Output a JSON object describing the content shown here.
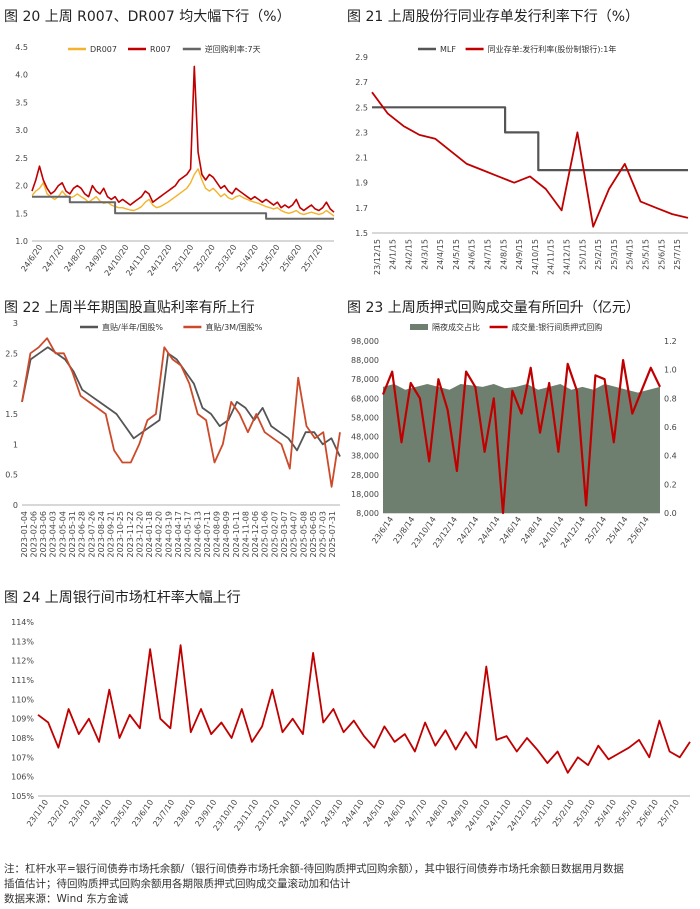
{
  "chart_data": [
    {
      "id": "fig20",
      "type": "line",
      "title": "图 20 上周 R007、DR007 均大幅下行（%）",
      "ylim": [
        1.0,
        4.5
      ],
      "yticks": [
        "1.0",
        "1.5",
        "2.0",
        "2.5",
        "3.0",
        "3.5",
        "4.0",
        "4.5"
      ],
      "x_tick_labels": [
        "24/6/20",
        "24/7/20",
        "24/8/20",
        "24/9/20",
        "24/10/20",
        "24/11/20",
        "24/12/20",
        "25/1/20",
        "25/2/20",
        "25/3/20",
        "25/4/20",
        "25/5/20",
        "25/6/20",
        "25/7/20"
      ],
      "series": [
        {
          "name": "DR007",
          "color": "#f4b32a",
          "values": [
            1.82,
            1.9,
            1.95,
            2.05,
            1.85,
            1.8,
            1.75,
            1.8,
            1.9,
            1.82,
            1.78,
            1.8,
            1.85,
            1.8,
            1.76,
            1.7,
            1.75,
            1.8,
            1.72,
            1.68,
            1.7,
            1.65,
            1.62,
            1.6,
            1.6,
            1.58,
            1.56,
            1.55,
            1.58,
            1.62,
            1.7,
            1.75,
            1.65,
            1.6,
            1.62,
            1.66,
            1.7,
            1.75,
            1.8,
            1.85,
            1.9,
            1.95,
            2.05,
            2.2,
            2.3,
            2.1,
            1.95,
            1.9,
            1.95,
            1.88,
            1.8,
            1.85,
            1.78,
            1.75,
            1.8,
            1.82,
            1.78,
            1.75,
            1.72,
            1.7,
            1.68,
            1.65,
            1.62,
            1.6,
            1.58,
            1.6,
            1.55,
            1.52,
            1.5,
            1.52,
            1.55,
            1.5,
            1.48,
            1.5,
            1.52,
            1.5,
            1.48,
            1.5,
            1.55,
            1.5,
            1.45
          ]
        },
        {
          "name": "R007",
          "color": "#c00000",
          "values": [
            1.9,
            2.1,
            2.35,
            2.1,
            1.95,
            1.85,
            1.9,
            2.0,
            2.05,
            1.9,
            1.85,
            1.95,
            2.0,
            1.95,
            1.85,
            1.8,
            2.0,
            1.9,
            1.85,
            1.95,
            1.8,
            1.75,
            1.8,
            1.7,
            1.75,
            1.7,
            1.65,
            1.7,
            1.75,
            1.8,
            1.9,
            1.85,
            1.7,
            1.75,
            1.8,
            1.85,
            1.9,
            1.95,
            2.0,
            2.1,
            2.15,
            2.2,
            2.3,
            4.15,
            2.6,
            2.2,
            2.1,
            2.2,
            2.15,
            2.05,
            1.95,
            2.0,
            1.9,
            1.85,
            1.95,
            1.9,
            1.85,
            1.8,
            1.75,
            1.8,
            1.75,
            1.7,
            1.75,
            1.7,
            1.65,
            1.7,
            1.6,
            1.65,
            1.6,
            1.65,
            1.75,
            1.6,
            1.55,
            1.6,
            1.65,
            1.58,
            1.55,
            1.6,
            1.7,
            1.58,
            1.52
          ]
        },
        {
          "name": "逆回购利率:7天",
          "color": "#666666",
          "step": true,
          "values": [
            1.8,
            1.8,
            1.8,
            1.8,
            1.8,
            1.8,
            1.8,
            1.8,
            1.8,
            1.8,
            1.7,
            1.7,
            1.7,
            1.7,
            1.7,
            1.7,
            1.7,
            1.7,
            1.7,
            1.7,
            1.7,
            1.7,
            1.5,
            1.5,
            1.5,
            1.5,
            1.5,
            1.5,
            1.5,
            1.5,
            1.5,
            1.5,
            1.5,
            1.5,
            1.5,
            1.5,
            1.5,
            1.5,
            1.5,
            1.5,
            1.5,
            1.5,
            1.5,
            1.5,
            1.5,
            1.5,
            1.5,
            1.5,
            1.5,
            1.5,
            1.5,
            1.5,
            1.5,
            1.5,
            1.5,
            1.5,
            1.5,
            1.5,
            1.5,
            1.5,
            1.5,
            1.5,
            1.4,
            1.4,
            1.4,
            1.4,
            1.4,
            1.4,
            1.4,
            1.4,
            1.4,
            1.4,
            1.4,
            1.4,
            1.4,
            1.4,
            1.4,
            1.4,
            1.4,
            1.4,
            1.4
          ]
        }
      ]
    },
    {
      "id": "fig21",
      "type": "line",
      "title": "图 21 上周股份行同业存单发行利率下行（%）",
      "ylim": [
        1.5,
        2.9
      ],
      "yticks": [
        "1.5",
        "1.7",
        "1.9",
        "2.1",
        "2.3",
        "2.5",
        "2.7",
        "2.9"
      ],
      "x_tick_labels": [
        "23/12/15",
        "24/1/15",
        "24/2/15",
        "24/3/15",
        "24/4/15",
        "24/5/15",
        "24/6/15",
        "24/7/15",
        "24/8/15",
        "24/9/15",
        "24/10/15",
        "24/11/15",
        "24/12/15",
        "25/1/15",
        "25/2/15",
        "25/3/15",
        "25/4/15",
        "25/5/15",
        "25/6/15",
        "25/7/15"
      ],
      "series": [
        {
          "name": "MLF",
          "color": "#555555",
          "step": true,
          "values": [
            2.5,
            2.5,
            2.5,
            2.5,
            2.5,
            2.5,
            2.5,
            2.5,
            2.3,
            2.3,
            2.0,
            2.0,
            2.0,
            2.0,
            2.0,
            2.0,
            2.0,
            2.0,
            2.0,
            2.0
          ]
        },
        {
          "name": "同业存单:发行利率(股份制银行):1年",
          "color": "#c00000",
          "values": [
            2.62,
            2.45,
            2.35,
            2.28,
            2.25,
            2.15,
            2.05,
            2.0,
            1.95,
            1.9,
            1.95,
            1.85,
            1.68,
            2.3,
            1.55,
            1.85,
            2.05,
            1.75,
            1.7,
            1.65,
            1.62
          ]
        }
      ]
    },
    {
      "id": "fig22",
      "type": "line",
      "title": "图 22 上周半年期国股直贴利率有所上行",
      "ylim": [
        0,
        3
      ],
      "yticks": [
        "0",
        "0.5",
        "1",
        "1.5",
        "2",
        "2.5",
        "3"
      ],
      "x_tick_labels": [
        "2023-01-04",
        "2023-02-06",
        "2023-03-06",
        "2023-04-03",
        "2023-05-04",
        "2023-05-31",
        "2023-06-28",
        "2023-07-26",
        "2023-08-24",
        "2023-09-21",
        "2023-10-25",
        "2023-11-22",
        "2023-12-20",
        "2024-01-18",
        "2024-02-20",
        "2024-03-19",
        "2024-04-17",
        "2024-05-17",
        "2024-06-13",
        "2024-07-11",
        "2024-08-09",
        "2024-09-09",
        "2024-10-11",
        "2024-11-08",
        "2024-12-06",
        "2025-01-06",
        "2025-02-07",
        "2025-03-07",
        "2025-04-07",
        "2025-05-08",
        "2025-06-05",
        "2025-07-03",
        "2025-07-31"
      ],
      "series": [
        {
          "name": "直贴/半年/国股%",
          "color": "#555555",
          "values": [
            1.7,
            2.4,
            2.5,
            2.6,
            2.5,
            2.4,
            2.2,
            1.9,
            1.8,
            1.7,
            1.6,
            1.5,
            1.3,
            1.1,
            1.2,
            1.3,
            1.4,
            2.5,
            2.4,
            2.2,
            2.0,
            1.6,
            1.5,
            1.3,
            1.4,
            1.7,
            1.6,
            1.4,
            1.6,
            1.3,
            1.2,
            1.1,
            0.9,
            1.2,
            1.2,
            1.0,
            1.1,
            0.8
          ]
        },
        {
          "name": "直贴/3M/国股%",
          "color": "#cc4a2a",
          "values": [
            1.7,
            2.5,
            2.6,
            2.75,
            2.5,
            2.5,
            2.2,
            1.8,
            1.7,
            1.6,
            1.5,
            0.9,
            0.7,
            0.7,
            1.0,
            1.4,
            1.5,
            2.6,
            2.4,
            2.3,
            2.0,
            1.5,
            1.4,
            0.7,
            1.0,
            1.7,
            1.5,
            1.2,
            1.5,
            1.2,
            1.1,
            1.0,
            0.6,
            2.1,
            1.3,
            1.1,
            1.2,
            0.3,
            1.2
          ]
        }
      ]
    },
    {
      "id": "fig23",
      "type": "area",
      "title": "图 23 上周质押式回购成交量有所回升（亿元）",
      "ylim_left": [
        8000,
        98000
      ],
      "yticks_left": [
        "8,000",
        "18,000",
        "28,000",
        "38,000",
        "48,000",
        "58,000",
        "68,000",
        "78,000",
        "88,000",
        "98,000"
      ],
      "ylim_right": [
        0,
        1.2
      ],
      "yticks_right": [
        "0.0",
        "0.2",
        "0.4",
        "0.6",
        "0.8",
        "1.0",
        "1.2"
      ],
      "x_tick_labels": [
        "23/6/14",
        "23/8/14",
        "23/10/14",
        "23/12/14",
        "24/2/14",
        "24/4/14",
        "24/6/14",
        "24/8/14",
        "24/10/14",
        "24/12/14",
        "25/2/14",
        "25/4/14",
        "25/6/14"
      ],
      "series": [
        {
          "name": "隔夜成交占比",
          "color": "#6f7f6f",
          "axis": "right",
          "values": [
            0.88,
            0.9,
            0.86,
            0.88,
            0.9,
            0.88,
            0.86,
            0.9,
            0.89,
            0.88,
            0.9,
            0.87,
            0.88,
            0.9,
            0.86,
            0.88,
            0.9,
            0.86,
            0.88,
            0.86,
            0.9,
            0.88,
            0.86,
            0.84,
            0.86,
            0.88
          ]
        },
        {
          "name": "成交量:银行间质押式回购",
          "color": "#c00000",
          "axis": "left",
          "values": [
            70000,
            82000,
            45000,
            76000,
            68000,
            35000,
            78000,
            62000,
            30000,
            82000,
            74000,
            40000,
            68000,
            8000,
            72000,
            60000,
            84000,
            50000,
            76000,
            40000,
            86000,
            72000,
            12000,
            80000,
            78000,
            45000,
            88000,
            60000,
            72000,
            84000,
            74000
          ]
        }
      ]
    },
    {
      "id": "fig24",
      "type": "line",
      "title": "图 24 上周银行间市场杠杆率大幅上行",
      "ylim": [
        105,
        114
      ],
      "yticks": [
        "105%",
        "106%",
        "107%",
        "108%",
        "109%",
        "110%",
        "111%",
        "112%",
        "113%",
        "114%"
      ],
      "x_tick_labels": [
        "23/1/10",
        "23/2/10",
        "23/3/10",
        "23/4/10",
        "23/5/10",
        "23/6/10",
        "23/7/10",
        "23/8/10",
        "23/9/10",
        "23/10/10",
        "23/11/10",
        "23/12/10",
        "24/1/10",
        "24/2/10",
        "24/3/10",
        "24/4/10",
        "24/5/10",
        "24/6/10",
        "24/7/10",
        "24/8/10",
        "24/9/10",
        "24/10/10",
        "24/11/10",
        "24/12/10",
        "25/1/10",
        "25/2/10",
        "25/3/10",
        "25/4/10",
        "25/5/10",
        "25/6/10",
        "25/7/10"
      ],
      "series": [
        {
          "name": "杠杆水平",
          "color": "#c00000",
          "values": [
            109.2,
            108.8,
            107.5,
            109.5,
            108.2,
            109.0,
            107.8,
            110.5,
            108.0,
            109.2,
            108.5,
            112.6,
            109.0,
            108.5,
            112.8,
            108.3,
            109.5,
            108.2,
            108.8,
            108.0,
            109.5,
            107.8,
            108.6,
            110.5,
            108.3,
            109.0,
            108.2,
            112.4,
            108.8,
            109.5,
            108.3,
            108.9,
            108.1,
            107.5,
            108.6,
            107.8,
            108.2,
            107.3,
            108.8,
            107.6,
            108.4,
            107.4,
            108.3,
            107.5,
            111.7,
            107.9,
            108.1,
            107.3,
            108.0,
            107.4,
            106.7,
            107.3,
            106.2,
            107.0,
            106.6,
            107.6,
            106.9,
            107.2,
            107.5,
            107.9,
            107.0,
            108.9,
            107.3,
            107.0,
            107.8
          ]
        }
      ]
    }
  ],
  "notes": {
    "line1": "注：杠杆水平=银行间债券市场托余额/（银行间债券市场托余额-待回购质押式回购余额），其中银行间债券市场托余额日数据用月数据",
    "line2": "插值估计；待回购质押式回购余额用各期限质押式回购成交量滚动加和估计",
    "source": "数据来源：Wind 东方金诚"
  }
}
